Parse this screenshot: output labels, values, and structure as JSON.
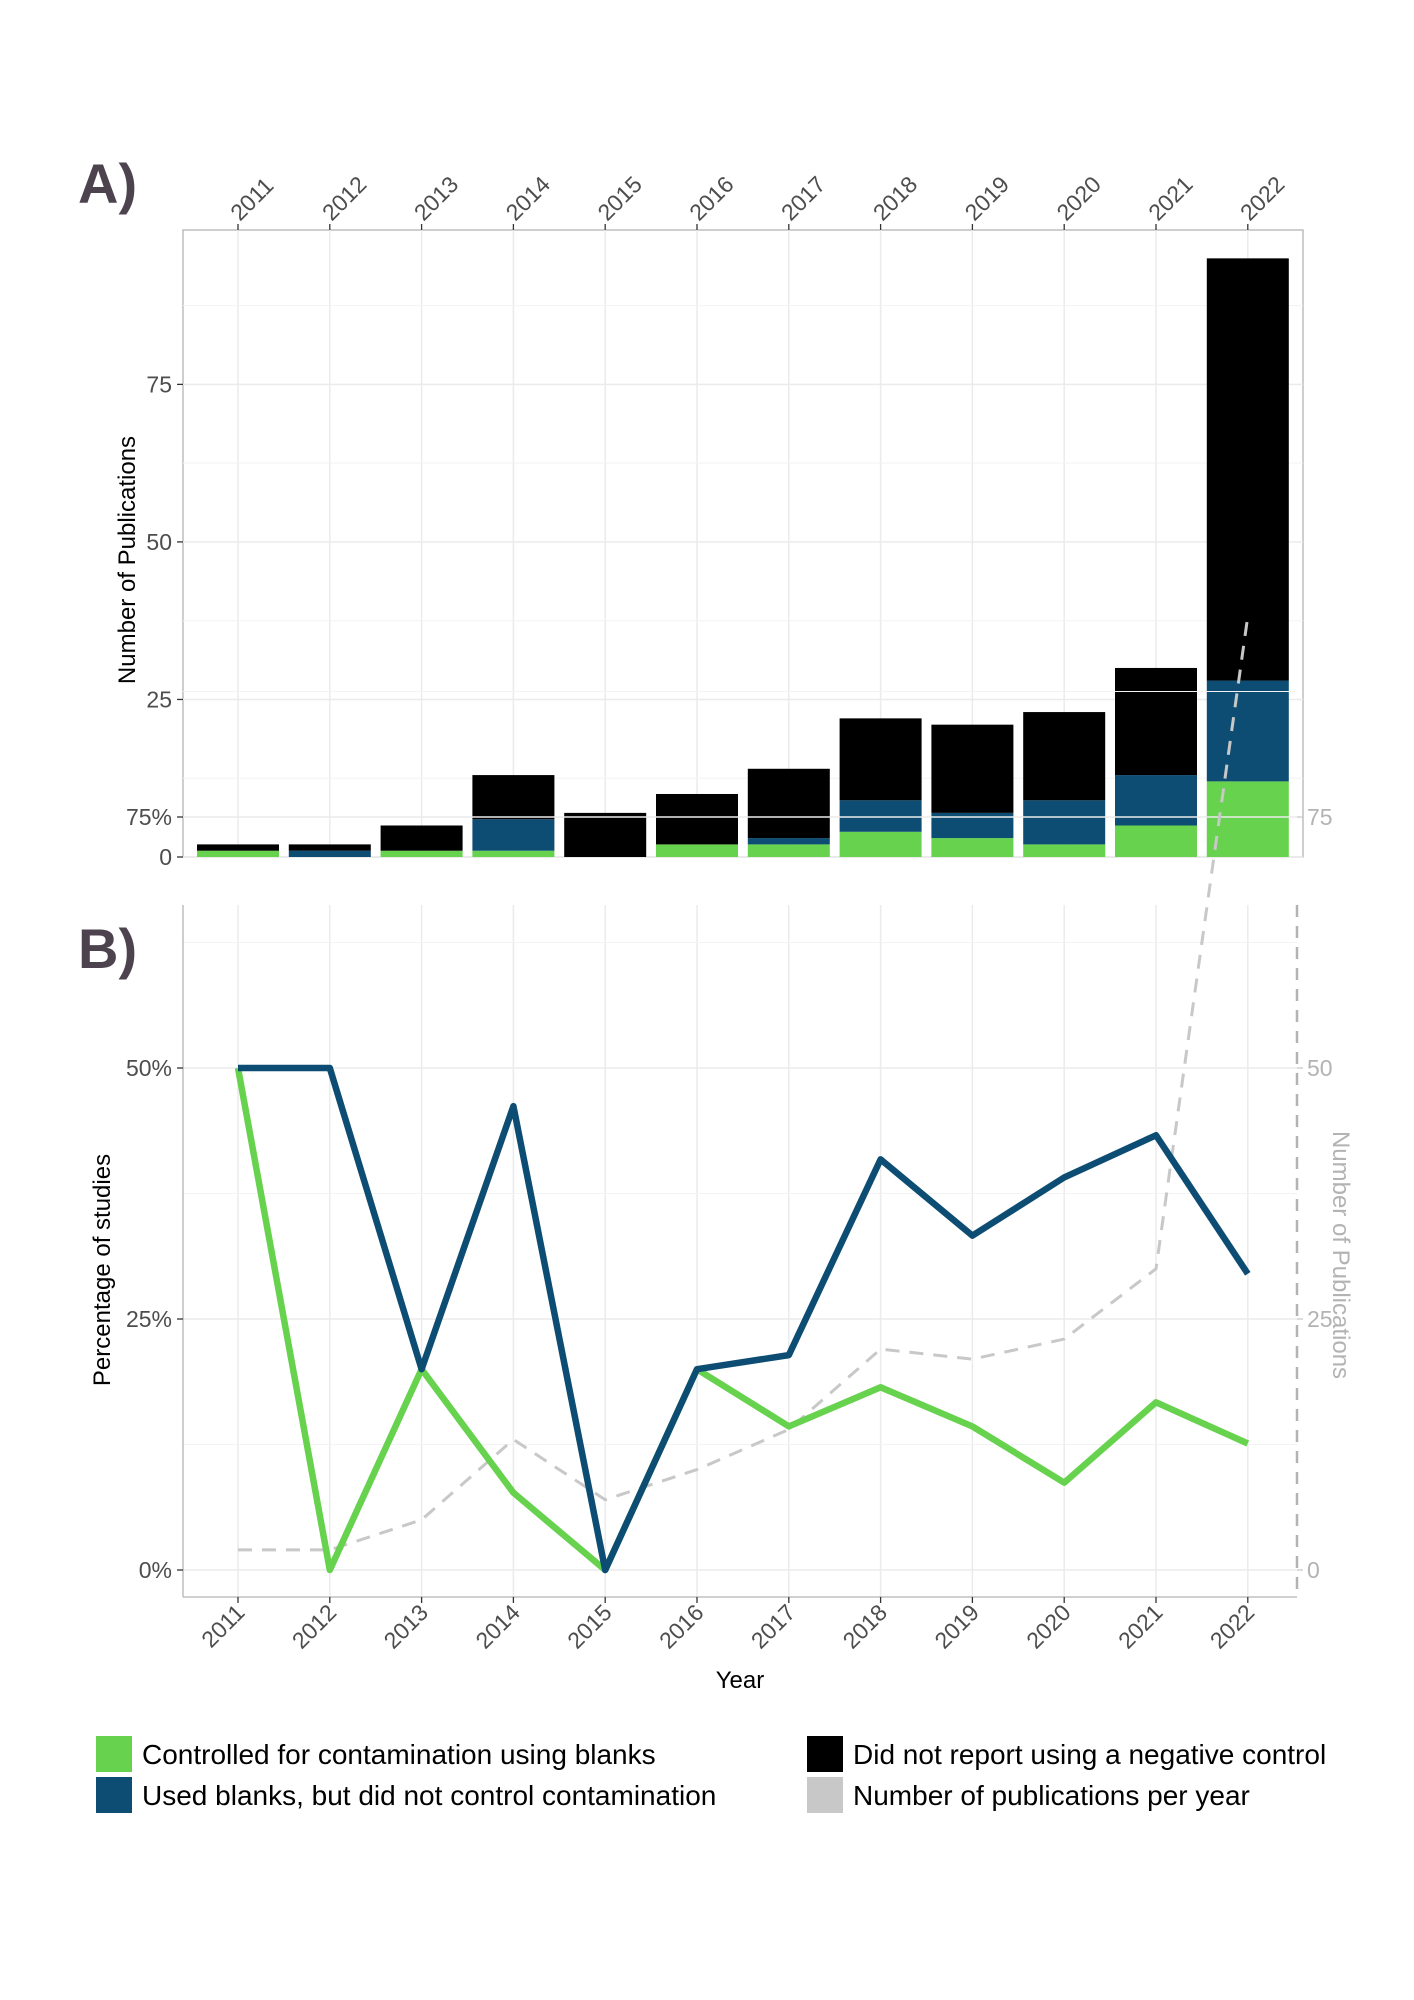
{
  "panel_a_label": "A)",
  "panel_b_label": "B)",
  "colors": {
    "controlled": "#66d24d",
    "used_blanks": "#0d4d73",
    "not_reported": "#000000",
    "publications": "#c8c8c8"
  },
  "chart_data": [
    {
      "type": "bar",
      "stacked": true,
      "panel": "A)",
      "categories": [
        "2011",
        "2012",
        "2013",
        "2014",
        "2015",
        "2016",
        "2017",
        "2018",
        "2019",
        "2020",
        "2021",
        "2022"
      ],
      "xaxis_position": "top",
      "ylabel": "Number of Publications",
      "ylim": [
        0,
        95
      ],
      "yticks": [
        0,
        25,
        50,
        75
      ],
      "grid": true,
      "series": [
        {
          "name": "Controlled for contamination using blanks",
          "color": "#66d24d",
          "values": [
            1,
            0,
            1,
            1,
            0,
            2,
            2,
            4,
            3,
            2,
            5,
            12
          ]
        },
        {
          "name": "Used blanks, but did not control contamination",
          "color": "#0d4d73",
          "values": [
            0,
            1,
            0,
            5,
            0,
            0,
            1,
            5,
            4,
            7,
            8,
            16
          ]
        },
        {
          "name": "Did not report using a negative control",
          "color": "#000000",
          "values": [
            1,
            1,
            4,
            7,
            7,
            8,
            11,
            13,
            14,
            14,
            17,
            67
          ]
        }
      ]
    },
    {
      "type": "line",
      "panel": "B)",
      "x": [
        "2011",
        "2012",
        "2013",
        "2014",
        "2015",
        "2016",
        "2017",
        "2018",
        "2019",
        "2020",
        "2021",
        "2022"
      ],
      "xlabel": "Year",
      "ylabel": "Percentage of studies",
      "ylim": [
        -0.05,
        1.0
      ],
      "yticks": [
        0,
        0.25,
        0.5,
        0.75
      ],
      "ytick_labels": [
        "0%",
        "25%",
        "50%",
        "75%"
      ],
      "y2label": "Number of Publications",
      "y2ticks": [
        0,
        25,
        50,
        75
      ],
      "y2lim": [
        -5,
        100
      ],
      "grid": true,
      "series": [
        {
          "name": "Controlled for contamination using blanks",
          "color": "#66d24d",
          "axis": "left",
          "values": [
            0.5,
            0.0,
            0.2,
            0.077,
            0.0,
            0.2,
            0.143,
            0.182,
            0.143,
            0.087,
            0.167,
            0.126
          ]
        },
        {
          "name": "Used blanks, but did not control contamination",
          "color": "#0d4d73",
          "axis": "left",
          "values": [
            0.5,
            0.5,
            0.2,
            0.462,
            0.0,
            0.2,
            0.214,
            0.409,
            0.333,
            0.391,
            0.433,
            0.295
          ]
        },
        {
          "name": "Number of publications per year",
          "color": "#c8c8c8",
          "axis": "right",
          "dashed": true,
          "values": [
            2,
            2,
            5,
            13,
            7,
            10,
            14,
            22,
            21,
            23,
            30,
            95
          ]
        }
      ]
    }
  ],
  "legend": [
    {
      "label": "Controlled for contamination using blanks",
      "color": "#66d24d"
    },
    {
      "label": "Did not report using a negative control",
      "color": "#000000"
    },
    {
      "label": "Used blanks, but did not control contamination",
      "color": "#0d4d73"
    },
    {
      "label": "Number of publications per year",
      "color": "#c8c8c8"
    }
  ]
}
